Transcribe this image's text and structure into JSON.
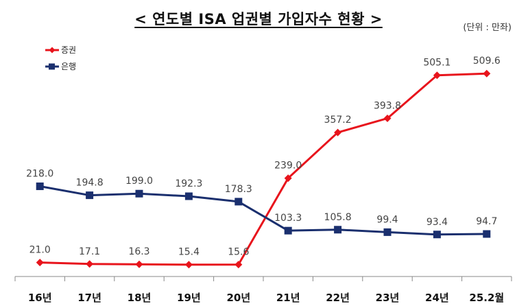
{
  "title": "< 연도별 ISA 업권별 가입자수 현황 >",
  "unit_label": "(단위 : 만좌)",
  "chart_data": {
    "type": "line",
    "title": "< 연도별 ISA 업권별 가입자수 현황 >",
    "unit": "(단위 : 만좌)",
    "categories": [
      "16년",
      "17년",
      "18년",
      "19년",
      "20년",
      "21년",
      "22년",
      "23년",
      "24년",
      "25.2월"
    ],
    "series": [
      {
        "name": "증권",
        "color": "#e8141c",
        "marker": "diamond",
        "values": [
          21.0,
          17.1,
          16.3,
          15.4,
          15.6,
          239.0,
          357.2,
          393.8,
          505.1,
          509.6
        ],
        "labels": [
          "21.0",
          "17.1",
          "16.3",
          "15.4",
          "15.6",
          "239.0",
          "357.2",
          "393.8",
          "505.1",
          "509.6"
        ]
      },
      {
        "name": "은행",
        "color": "#1a2f6e",
        "marker": "square",
        "values": [
          218.0,
          194.8,
          199.0,
          192.3,
          178.3,
          103.3,
          105.8,
          99.4,
          93.4,
          94.7
        ],
        "labels": [
          "218.0",
          "194.8",
          "199.0",
          "192.3",
          "178.3",
          "103.3",
          "105.8",
          "99.4",
          "93.4",
          "94.7"
        ]
      }
    ],
    "ylim": [
      0,
      600
    ],
    "grid": false,
    "legend": "top-left"
  }
}
